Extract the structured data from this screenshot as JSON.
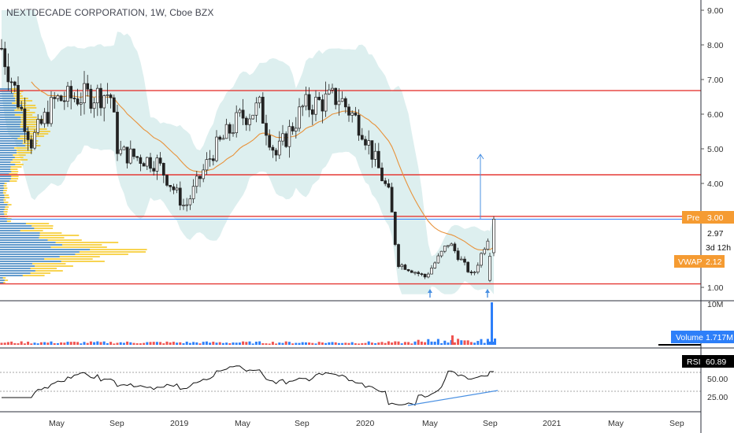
{
  "header": {
    "title": "NEXTDECADE CORPORATION, 1W, Cboe BZX"
  },
  "colors": {
    "up": "#26a69a",
    "down": "#ef5350",
    "support_line": "#e53935",
    "vwap_line": "#e8923a",
    "band_fill": "#d7ecec",
    "pre_badge": "#f59b32",
    "volume_badge": "#2d7ff9",
    "rsi_badge": "#000000",
    "trend_line": "#4a90e2",
    "current_line": "#2d7ff9"
  },
  "price_axis": {
    "ticks": [
      "9.00",
      "8.00",
      "7.00",
      "6.00",
      "5.00",
      "4.00",
      "1.00"
    ]
  },
  "badges": {
    "pre": {
      "label": "Pre",
      "value": "3.00"
    },
    "last": {
      "value": "2.97"
    },
    "countdown": {
      "value": "3d 12h"
    },
    "vwap": {
      "label": "VWAP",
      "value": "2.12"
    },
    "volume": {
      "label": "Volume",
      "value": "1.717M"
    },
    "volume_axis": {
      "value": "10M"
    },
    "rsi": {
      "label": "RSI",
      "value": "60.89"
    }
  },
  "rsi_axis": {
    "ticks": [
      "50.00",
      "25.00"
    ]
  },
  "x_axis": {
    "labels": [
      "May",
      "Sep",
      "2019",
      "May",
      "Sep",
      "2020",
      "May",
      "Sep",
      "2021",
      "May",
      "Sep"
    ]
  },
  "chart_data": {
    "type": "candlestick",
    "title": "NEXTDECADE CORPORATION, 1W, Cboe BZX",
    "y_unit": "price (USD)",
    "ylim": [
      0.7,
      9.2
    ],
    "support_resistance_levels": [
      6.68,
      4.25,
      3.05,
      1.1
    ],
    "current_price_line": 2.97,
    "approx_weekly_closes": [
      {
        "period": "2018-Jan",
        "close": 7.9
      },
      {
        "period": "2018-Mar",
        "close": 5.2
      },
      {
        "period": "2018-May",
        "close": 6.4
      },
      {
        "period": "2018-Jul",
        "close": 6.5
      },
      {
        "period": "2018-Sep",
        "close": 6.6
      },
      {
        "period": "2018-Oct",
        "close": 4.9
      },
      {
        "period": "2018-Dec",
        "close": 4.6
      },
      {
        "period": "2019-Jan",
        "close": 3.3
      },
      {
        "period": "2019-Mar",
        "close": 4.9
      },
      {
        "period": "2019-May",
        "close": 5.9
      },
      {
        "period": "2019-Jul",
        "close": 6.2
      },
      {
        "period": "2019-Aug",
        "close": 4.8
      },
      {
        "period": "2019-Sep",
        "close": 6.2
      },
      {
        "period": "2019-Nov",
        "close": 6.5
      },
      {
        "period": "2019-Dec",
        "close": 5.6
      },
      {
        "period": "2020-Feb",
        "close": 3.6
      },
      {
        "period": "2020-Mar",
        "close": 1.7
      },
      {
        "period": "2020-May",
        "close": 1.3
      },
      {
        "period": "2020-Jun",
        "close": 2.3
      },
      {
        "period": "2020-Aug",
        "close": 1.3
      },
      {
        "period": "2020-Sep",
        "close": 2.97
      }
    ],
    "vwap_last": 2.12,
    "volume_last": "1.717M",
    "rsi_last": 60.89,
    "rsi_ticks": [
      50,
      25
    ]
  }
}
